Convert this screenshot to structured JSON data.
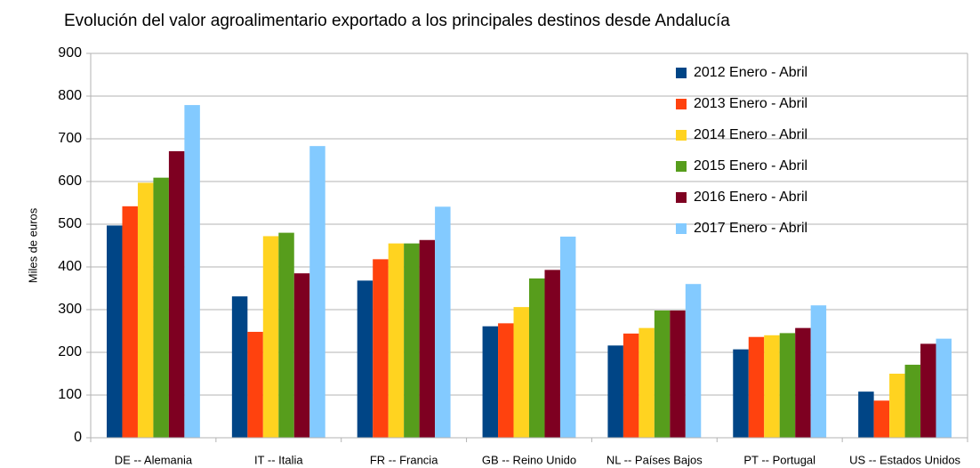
{
  "chart_data": {
    "type": "bar",
    "title": "Evolución del valor agroalimentario exportado a los principales destinos desde Andalucía",
    "y_label": "Miles de euros",
    "categories": [
      "DE -- Alemania",
      "IT -- Italia",
      "FR -- Francia",
      "GB -- Reino Unido",
      "NL -- Países Bajos",
      "PT -- Portugal",
      "US -- Estados Unidos"
    ],
    "series": [
      {
        "name": "2012 Enero - Abril",
        "color": "#004586",
        "values": [
          497,
          331,
          368,
          261,
          216,
          207,
          108
        ]
      },
      {
        "name": "2013 Enero - Abril",
        "color": "#ff420e",
        "values": [
          542,
          248,
          418,
          268,
          244,
          236,
          87
        ]
      },
      {
        "name": "2014 Enero - Abril",
        "color": "#ffd320",
        "values": [
          597,
          472,
          455,
          306,
          257,
          240,
          150
        ]
      },
      {
        "name": "2015 Enero - Abril",
        "color": "#579d1c",
        "values": [
          609,
          480,
          455,
          373,
          298,
          245,
          171
        ]
      },
      {
        "name": "2016 Enero - Abril",
        "color": "#7e0021",
        "values": [
          671,
          385,
          463,
          393,
          298,
          257,
          220
        ]
      },
      {
        "name": "2017 Enero - Abril",
        "color": "#83caff",
        "values": [
          779,
          683,
          541,
          471,
          360,
          310,
          232
        ]
      }
    ],
    "ylim": [
      0,
      900
    ],
    "yticks": [
      0,
      100,
      200,
      300,
      400,
      500,
      600,
      700,
      800,
      900
    ],
    "grid": true,
    "legend": "upper right"
  }
}
